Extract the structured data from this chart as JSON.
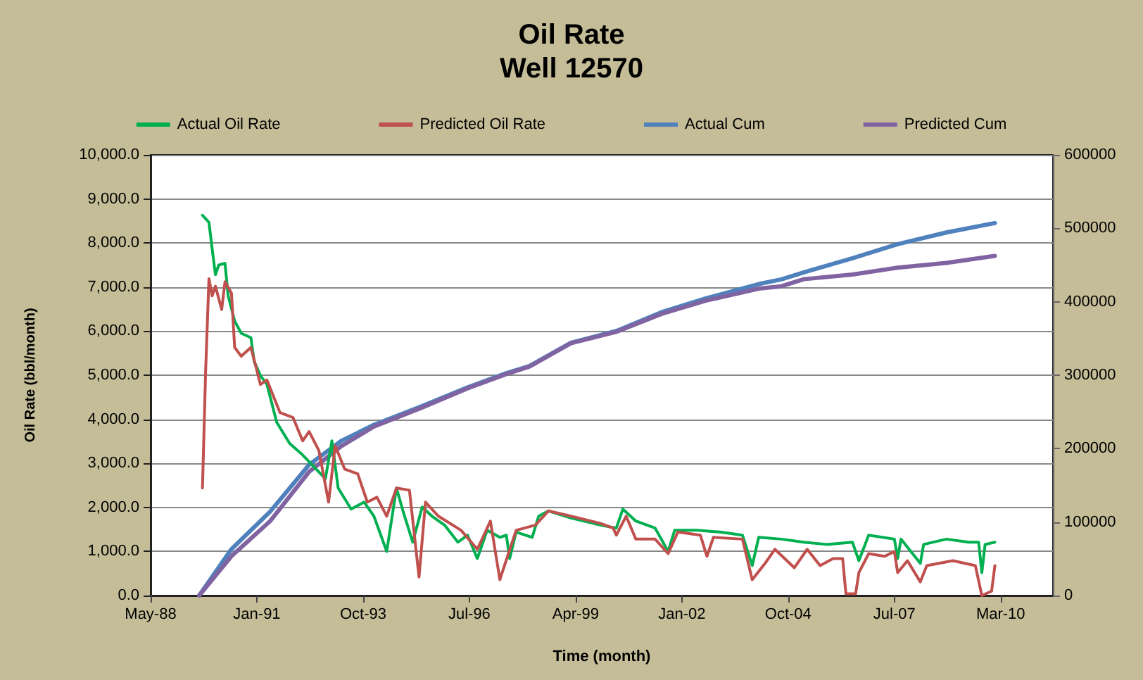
{
  "chart_data": {
    "type": "line",
    "title": "Oil Rate",
    "subtitle": "Well 12570",
    "xlabel": "Time (month)",
    "ylabel": "Oil Rate (bbl/month)",
    "xlim": [
      "1988-05-01",
      "2011-08-01"
    ],
    "xticks": [
      {
        "value": "1988-05-01",
        "label": "May-88"
      },
      {
        "value": "1991-01-26",
        "label": "Jan-91"
      },
      {
        "value": "1993-10-22",
        "label": "Oct-93"
      },
      {
        "value": "1996-07-18",
        "label": "Jul-96"
      },
      {
        "value": "1999-04-14",
        "label": "Apr-99"
      },
      {
        "value": "2002-01-08",
        "label": "Jan-02"
      },
      {
        "value": "2004-10-04",
        "label": "Oct-04"
      },
      {
        "value": "2007-07-01",
        "label": "Jul-07"
      },
      {
        "value": "2010-03-27",
        "label": "Mar-10"
      }
    ],
    "ylim": [
      0,
      10000
    ],
    "yticks": [
      {
        "value": 0,
        "label": "0.0"
      },
      {
        "value": 1000,
        "label": "1,000.0"
      },
      {
        "value": 2000,
        "label": "2,000.0"
      },
      {
        "value": 3000,
        "label": "3,000.0"
      },
      {
        "value": 4000,
        "label": "4,000.0"
      },
      {
        "value": 5000,
        "label": "5,000.0"
      },
      {
        "value": 6000,
        "label": "6,000.0"
      },
      {
        "value": 7000,
        "label": "7,000.0"
      },
      {
        "value": 8000,
        "label": "8,000.0"
      },
      {
        "value": 9000,
        "label": "9,000.0"
      },
      {
        "value": 10000,
        "label": "10,000.0"
      }
    ],
    "y2lim": [
      0,
      600000
    ],
    "y2ticks": [
      0,
      100000,
      200000,
      300000,
      400000,
      500000,
      600000
    ],
    "grid": "y",
    "legend": "top",
    "line_style": "solid",
    "series": [
      {
        "name": "Actual Oil Rate",
        "color": "#00b050",
        "x": [
          "1989-09",
          "1989-11",
          "1989-12",
          "1990-01",
          "1990-02",
          "1990-04",
          "1990-05",
          "1990-07",
          "1990-09",
          "1990-12",
          "1991-01",
          "1991-03",
          "1991-05",
          "1991-08",
          "1991-12",
          "1992-04",
          "1992-08",
          "1992-11",
          "1993-01",
          "1993-03",
          "1993-07",
          "1993-11",
          "1994-02",
          "1994-06",
          "1994-09",
          "1994-11",
          "1995-02",
          "1995-05",
          "1995-08",
          "1995-12",
          "1996-04",
          "1996-07",
          "1996-10",
          "1997-01",
          "1997-05",
          "1997-07",
          "1997-08",
          "1997-10",
          "1998-03",
          "1998-05",
          "1998-08",
          "1999-03",
          "1999-12",
          "2000-05",
          "2000-07",
          "2000-11",
          "2001-05",
          "2001-09",
          "2001-11",
          "2002-06",
          "2003-01",
          "2003-08",
          "2003-11",
          "2004-01",
          "2004-08",
          "2005-03",
          "2005-10",
          "2006-06",
          "2006-08",
          "2006-11",
          "2007-07",
          "2007-08",
          "2007-09",
          "2008-03",
          "2008-04",
          "2008-11",
          "2009-06",
          "2009-09",
          "2009-10",
          "2009-11",
          "2010-02"
        ],
        "values": [
          8630,
          8470,
          7870,
          7280,
          7500,
          7540,
          6800,
          6230,
          5950,
          5850,
          5310,
          4990,
          4790,
          3930,
          3450,
          3190,
          2880,
          2650,
          3510,
          2440,
          1960,
          2120,
          1800,
          1000,
          2440,
          1920,
          1210,
          2010,
          1800,
          1590,
          1210,
          1370,
          840,
          1480,
          1320,
          1370,
          840,
          1440,
          1320,
          1800,
          1920,
          1760,
          1600,
          1530,
          1960,
          1690,
          1530,
          1000,
          1480,
          1480,
          1440,
          1370,
          680,
          1320,
          1280,
          1210,
          1160,
          1210,
          790,
          1370,
          1280,
          840,
          1280,
          730,
          1160,
          1280,
          1210,
          1210,
          520,
          1160,
          1210
        ]
      },
      {
        "name": "Predicted Oil Rate",
        "color": "#c0504d",
        "x": [
          "1989-09",
          "1989-10",
          "1989-11",
          "1989-12",
          "1990-01",
          "1990-03",
          "1990-04",
          "1990-06",
          "1990-07",
          "1990-09",
          "1990-12",
          "1991-03",
          "1991-05",
          "1991-09",
          "1992-01",
          "1992-04",
          "1992-06",
          "1992-09",
          "1992-12",
          "1993-02",
          "1993-05",
          "1993-09",
          "1993-12",
          "1994-03",
          "1994-06",
          "1994-09",
          "1995-01",
          "1995-04",
          "1995-06",
          "1995-10",
          "1996-05",
          "1996-10",
          "1997-02",
          "1997-05",
          "1997-10",
          "1998-04",
          "1998-08",
          "1999-03",
          "1999-12",
          "2000-04",
          "2000-05",
          "2000-08",
          "2000-11",
          "2001-05",
          "2001-09",
          "2001-12",
          "2002-07",
          "2002-09",
          "2002-11",
          "2003-08",
          "2003-11",
          "2004-03",
          "2004-06",
          "2004-12",
          "2005-04",
          "2005-08",
          "2005-12",
          "2006-03",
          "2006-04",
          "2006-07",
          "2006-08",
          "2006-11",
          "2007-04",
          "2007-07",
          "2007-08",
          "2007-11",
          "2008-03",
          "2008-05",
          "2009-01",
          "2009-08",
          "2009-10",
          "2010-01",
          "2010-02"
        ],
        "values": [
          2440,
          5110,
          7190,
          6800,
          7020,
          6490,
          7120,
          6860,
          5630,
          5430,
          5630,
          4790,
          4890,
          4150,
          4040,
          3510,
          3720,
          3290,
          2120,
          3400,
          2870,
          2760,
          2120,
          2230,
          1800,
          2440,
          2390,
          420,
          2120,
          1800,
          1480,
          1050,
          1690,
          360,
          1480,
          1600,
          1920,
          1800,
          1640,
          1530,
          1370,
          1800,
          1280,
          1280,
          950,
          1440,
          1370,
          890,
          1320,
          1280,
          360,
          730,
          1050,
          630,
          1050,
          680,
          840,
          840,
          40,
          40,
          520,
          950,
          890,
          1000,
          520,
          790,
          310,
          680,
          790,
          680,
          0,
          100,
          680
        ]
      },
      {
        "name": "Actual Cum",
        "color": "#4f81bd",
        "axis": "y2",
        "x": [
          "1989-08",
          "1990-06",
          "1991-06",
          "1992-06",
          "1993-04",
          "1994-02",
          "1995-05",
          "1996-07",
          "1997-07",
          "1998-02",
          "1999-03",
          "2000-05",
          "2001-07",
          "2002-09",
          "2004-01",
          "2004-08",
          "2005-03",
          "2006-06",
          "2007-08",
          "2008-11",
          "2010-02"
        ],
        "values": [
          0,
          63200,
          114400,
          178200,
          210700,
          232400,
          258000,
          283500,
          302700,
          312300,
          344300,
          360200,
          385800,
          405000,
          424100,
          430500,
          440100,
          459300,
          478400,
          494300,
          507100
        ]
      },
      {
        "name": "Predicted Cum",
        "color": "#8064a2",
        "axis": "y2",
        "x": [
          "1989-08",
          "1990-06",
          "1991-06",
          "1992-06",
          "1993-04",
          "1994-02",
          "1995-05",
          "1996-07",
          "1997-07",
          "1998-02",
          "1999-03",
          "2000-05",
          "2001-07",
          "2002-09",
          "2004-01",
          "2004-08",
          "2005-03",
          "2006-06",
          "2007-08",
          "2008-11",
          "2010-02"
        ],
        "values": [
          0,
          53600,
          101500,
          168600,
          203600,
          230000,
          256000,
          282000,
          301500,
          311500,
          343500,
          359000,
          383500,
          401900,
          417900,
          421100,
          430700,
          437000,
          446400,
          452800,
          462400
        ]
      }
    ]
  }
}
